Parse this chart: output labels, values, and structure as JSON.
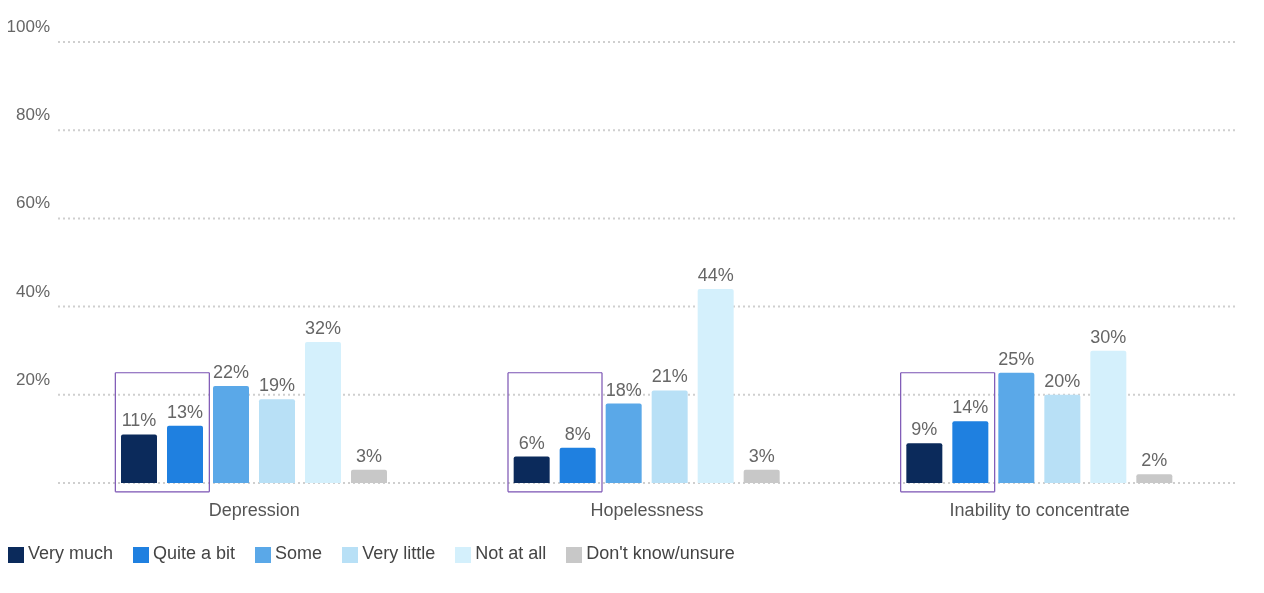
{
  "chart_data": {
    "type": "bar",
    "categories": [
      "Depression",
      "Hopelessness",
      "Inability to concentrate"
    ],
    "series": [
      {
        "name": "Very much",
        "color": "#0b2a5b",
        "values": [
          11,
          6,
          9
        ],
        "value_labels": [
          "11%",
          "6%",
          "9%"
        ]
      },
      {
        "name": "Quite a bit",
        "color": "#1f80e0",
        "values": [
          13,
          8,
          14
        ],
        "value_labels": [
          "13%",
          "8%",
          "14%"
        ]
      },
      {
        "name": "Some",
        "color": "#5aa8e8",
        "values": [
          22,
          18,
          25
        ],
        "value_labels": [
          "22%",
          "18%",
          "25%"
        ]
      },
      {
        "name": "Very little",
        "color": "#b8e0f6",
        "values": [
          19,
          21,
          20
        ],
        "value_labels": [
          "19%",
          "21%",
          "20%"
        ]
      },
      {
        "name": "Not at all",
        "color": "#d4f0fc",
        "values": [
          32,
          44,
          30
        ],
        "value_labels": [
          "32%",
          "44%",
          "30%"
        ]
      },
      {
        "name": "Don't know/unsure",
        "color": "#c8c8c8",
        "values": [
          3,
          3,
          2
        ],
        "value_labels": [
          "3%",
          "3%",
          "2%"
        ]
      }
    ],
    "ylim": [
      0,
      100
    ],
    "yticks": [
      {
        "value": 0,
        "label": null
      },
      {
        "value": 20,
        "label": "20%"
      },
      {
        "value": 40,
        "label": "40%"
      },
      {
        "value": 60,
        "label": "60%"
      },
      {
        "value": 80,
        "label": "80%"
      },
      {
        "value": 100,
        "label": "100%"
      }
    ],
    "grid": "y",
    "legend": "bottom left"
  }
}
